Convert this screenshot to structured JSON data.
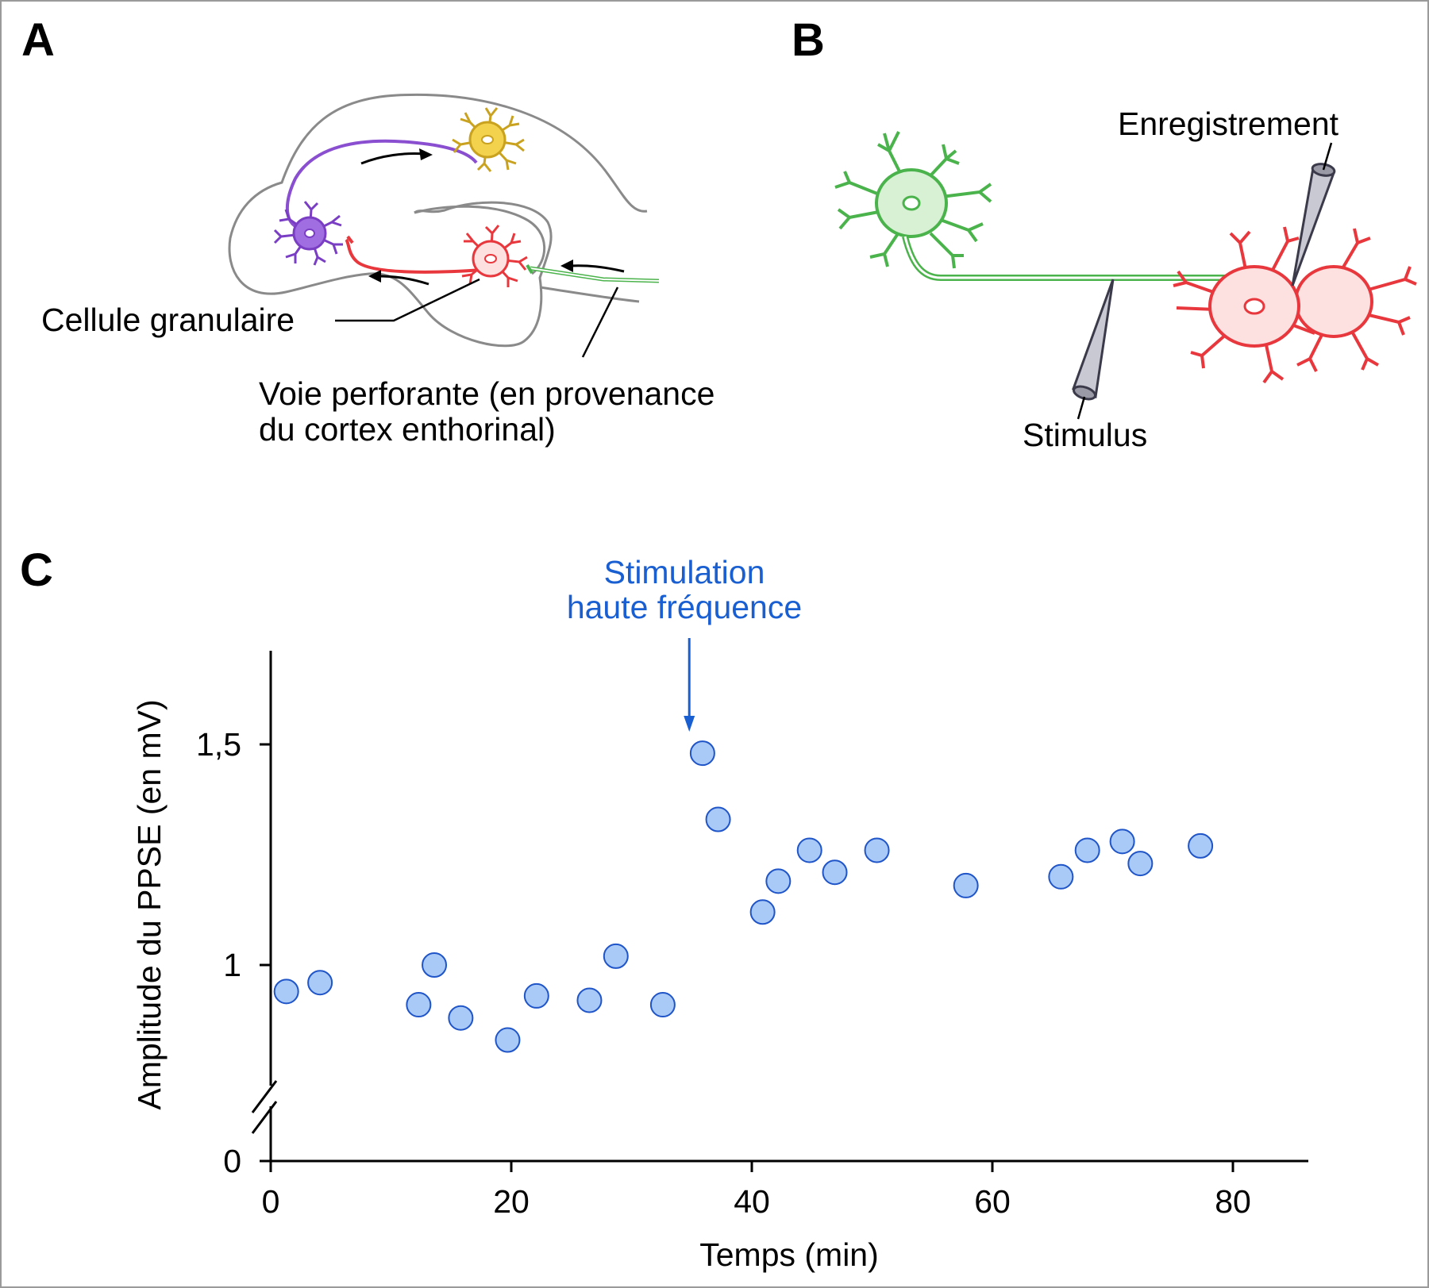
{
  "panels": {
    "a": {
      "letter": "A"
    },
    "b": {
      "letter": "B"
    },
    "c": {
      "letter": "C"
    }
  },
  "panel_a": {
    "granule_label": "Cellule granulaire",
    "perforant_label_line1": "Voie perforante (en provenance",
    "perforant_label_line2": "du cortex enthorinal)"
  },
  "panel_b": {
    "recording_label": "Enregistrement",
    "stimulus_label": "Stimulus"
  },
  "colors": {
    "purple": "#8a4fd1",
    "yellow": "#e9c237",
    "red": "#e8383d",
    "green": "#4bb34b",
    "point_fill": "#a9c9f7",
    "point_stroke": "#1f55c8",
    "annotation_blue": "#1a5fd1"
  },
  "chart_data": {
    "type": "scatter",
    "xlabel": "Temps (min)",
    "ylabel": "Amplitude du PPSE (en mV)",
    "xlim": [
      0,
      86
    ],
    "ylim": [
      0.75,
      1.72
    ],
    "axis_break": true,
    "x_ticks": [
      {
        "value": 0,
        "label": "0"
      },
      {
        "value": 20,
        "label": "20"
      },
      {
        "value": 40,
        "label": "40"
      },
      {
        "value": 60,
        "label": "60"
      },
      {
        "value": 80,
        "label": "80"
      }
    ],
    "y_ticks": [
      {
        "value": 1.0,
        "label": "1"
      },
      {
        "value": 1.5,
        "label": "1,5"
      }
    ],
    "y_zero_label": "0",
    "annotation": {
      "line1": "Stimulation",
      "line2": "haute fréquence",
      "x": 34.8
    },
    "points": [
      {
        "x": 1.3,
        "y": 0.94
      },
      {
        "x": 4.1,
        "y": 0.96
      },
      {
        "x": 12.3,
        "y": 0.91
      },
      {
        "x": 13.6,
        "y": 1.0
      },
      {
        "x": 15.8,
        "y": 0.88
      },
      {
        "x": 19.7,
        "y": 0.83
      },
      {
        "x": 22.1,
        "y": 0.93
      },
      {
        "x": 26.5,
        "y": 0.92
      },
      {
        "x": 28.7,
        "y": 1.02
      },
      {
        "x": 32.6,
        "y": 0.91
      },
      {
        "x": 35.9,
        "y": 1.48
      },
      {
        "x": 37.2,
        "y": 1.33
      },
      {
        "x": 40.9,
        "y": 1.12
      },
      {
        "x": 42.2,
        "y": 1.19
      },
      {
        "x": 44.8,
        "y": 1.26
      },
      {
        "x": 46.9,
        "y": 1.21
      },
      {
        "x": 50.4,
        "y": 1.26
      },
      {
        "x": 57.8,
        "y": 1.18
      },
      {
        "x": 65.7,
        "y": 1.2
      },
      {
        "x": 67.9,
        "y": 1.26
      },
      {
        "x": 70.8,
        "y": 1.28
      },
      {
        "x": 72.3,
        "y": 1.23
      },
      {
        "x": 77.3,
        "y": 1.27
      }
    ]
  }
}
